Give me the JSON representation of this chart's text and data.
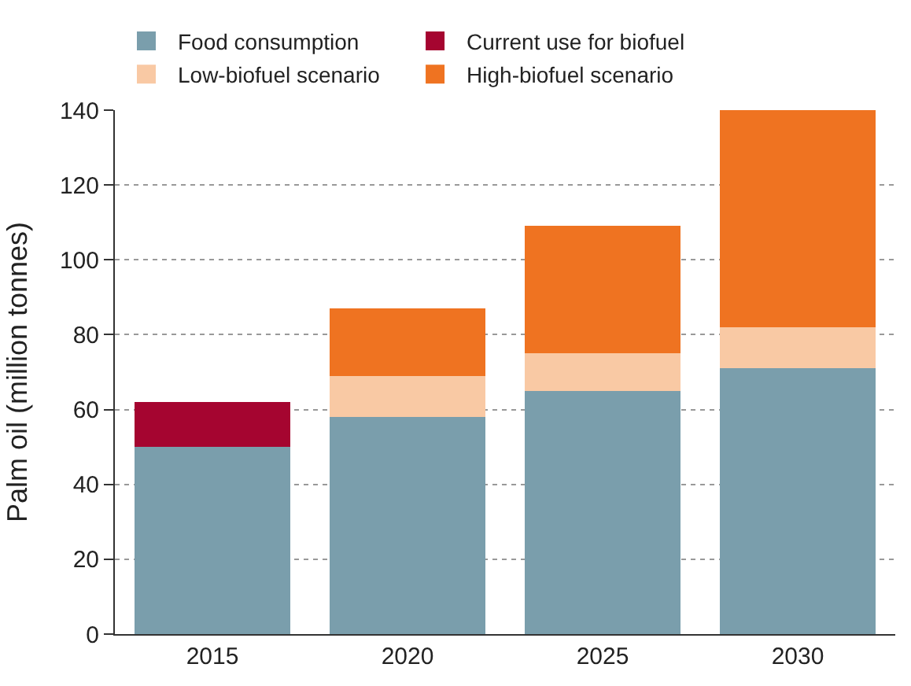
{
  "chart_data": {
    "type": "bar",
    "stacked": true,
    "ylabel": "Palm oil (million tonnes)",
    "categories": [
      "2015",
      "2020",
      "2025",
      "2030"
    ],
    "series": [
      {
        "name": "Food consumption",
        "color": "#7a9eac",
        "values": [
          50,
          58,
          65,
          71
        ]
      },
      {
        "name": "Current use for biofuel",
        "color": "#a50530",
        "values": [
          12,
          null,
          null,
          null
        ]
      },
      {
        "name": "Low-biofuel scenario",
        "color": "#f9c9a4",
        "values": [
          null,
          11,
          10,
          11
        ]
      },
      {
        "name": "High-biofuel scenario",
        "color": "#ef7321",
        "values": [
          null,
          18,
          34,
          58
        ]
      }
    ],
    "ylim": [
      0,
      140
    ],
    "yticks": [
      0,
      20,
      40,
      60,
      80,
      100,
      120,
      140
    ],
    "grid": "y",
    "legend": "top"
  }
}
